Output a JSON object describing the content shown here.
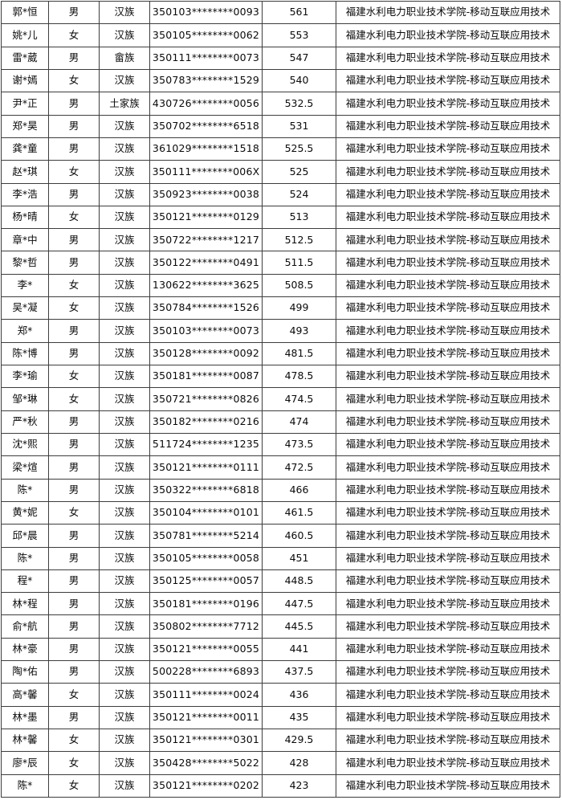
{
  "table": {
    "description_rows_format": [
      "name",
      "gender",
      "ethnicity",
      "id_number",
      "score",
      "school_major"
    ],
    "rows": [
      [
        "郭*恒",
        "男",
        "汉族",
        "350103********0093",
        "561",
        "福建水利电力职业技术学院-移动互联应用技术"
      ],
      [
        "姚*儿",
        "女",
        "汉族",
        "350105********0062",
        "553",
        "福建水利电力职业技术学院-移动互联应用技术"
      ],
      [
        "雷*葳",
        "男",
        "畲族",
        "350111********0073",
        "547",
        "福建水利电力职业技术学院-移动互联应用技术"
      ],
      [
        "谢*嫣",
        "女",
        "汉族",
        "350783********1529",
        "540",
        "福建水利电力职业技术学院-移动互联应用技术"
      ],
      [
        "尹*正",
        "男",
        "土家族",
        "430726********0056",
        "532.5",
        "福建水利电力职业技术学院-移动互联应用技术"
      ],
      [
        "郑*昊",
        "男",
        "汉族",
        "350702********6518",
        "531",
        "福建水利电力职业技术学院-移动互联应用技术"
      ],
      [
        "龚*童",
        "男",
        "汉族",
        "361029********1518",
        "525.5",
        "福建水利电力职业技术学院-移动互联应用技术"
      ],
      [
        "赵*琪",
        "女",
        "汉族",
        "350111********006X",
        "525",
        "福建水利电力职业技术学院-移动互联应用技术"
      ],
      [
        "李*浩",
        "男",
        "汉族",
        "350923********0038",
        "524",
        "福建水利电力职业技术学院-移动互联应用技术"
      ],
      [
        "杨*晴",
        "女",
        "汉族",
        "350121********0129",
        "513",
        "福建水利电力职业技术学院-移动互联应用技术"
      ],
      [
        "章*中",
        "男",
        "汉族",
        "350722********1217",
        "512.5",
        "福建水利电力职业技术学院-移动互联应用技术"
      ],
      [
        "黎*哲",
        "男",
        "汉族",
        "350122********0491",
        "511.5",
        "福建水利电力职业技术学院-移动互联应用技术"
      ],
      [
        "李*",
        "女",
        "汉族",
        "130622********3625",
        "508.5",
        "福建水利电力职业技术学院-移动互联应用技术"
      ],
      [
        "吴*凝",
        "女",
        "汉族",
        "350784********1526",
        "499",
        "福建水利电力职业技术学院-移动互联应用技术"
      ],
      [
        "郑*",
        "男",
        "汉族",
        "350103********0073",
        "493",
        "福建水利电力职业技术学院-移动互联应用技术"
      ],
      [
        "陈*博",
        "男",
        "汉族",
        "350128********0092",
        "481.5",
        "福建水利电力职业技术学院-移动互联应用技术"
      ],
      [
        "李*瑜",
        "女",
        "汉族",
        "350181********0087",
        "478.5",
        "福建水利电力职业技术学院-移动互联应用技术"
      ],
      [
        "邹*琳",
        "女",
        "汉族",
        "350721********0826",
        "474.5",
        "福建水利电力职业技术学院-移动互联应用技术"
      ],
      [
        "严*秋",
        "男",
        "汉族",
        "350182********0216",
        "474",
        "福建水利电力职业技术学院-移动互联应用技术"
      ],
      [
        "沈*熙",
        "男",
        "汉族",
        "511724********1235",
        "473.5",
        "福建水利电力职业技术学院-移动互联应用技术"
      ],
      [
        "梁*煊",
        "男",
        "汉族",
        "350121********0111",
        "472.5",
        "福建水利电力职业技术学院-移动互联应用技术"
      ],
      [
        "陈*",
        "男",
        "汉族",
        "350322********6818",
        "466",
        "福建水利电力职业技术学院-移动互联应用技术"
      ],
      [
        "黄*妮",
        "女",
        "汉族",
        "350104********0101",
        "461.5",
        "福建水利电力职业技术学院-移动互联应用技术"
      ],
      [
        "邱*晨",
        "男",
        "汉族",
        "350781********5214",
        "460.5",
        "福建水利电力职业技术学院-移动互联应用技术"
      ],
      [
        "陈*",
        "男",
        "汉族",
        "350105********0058",
        "451",
        "福建水利电力职业技术学院-移动互联应用技术"
      ],
      [
        "程*",
        "男",
        "汉族",
        "350125********0057",
        "448.5",
        "福建水利电力职业技术学院-移动互联应用技术"
      ],
      [
        "林*程",
        "男",
        "汉族",
        "350181********0196",
        "447.5",
        "福建水利电力职业技术学院-移动互联应用技术"
      ],
      [
        "俞*航",
        "男",
        "汉族",
        "350802********7712",
        "445.5",
        "福建水利电力职业技术学院-移动互联应用技术"
      ],
      [
        "林*豪",
        "男",
        "汉族",
        "350121********0055",
        "441",
        "福建水利电力职业技术学院-移动互联应用技术"
      ],
      [
        "陶*佑",
        "男",
        "汉族",
        "500228********6893",
        "437.5",
        "福建水利电力职业技术学院-移动互联应用技术"
      ],
      [
        "高*馨",
        "女",
        "汉族",
        "350111********0024",
        "436",
        "福建水利电力职业技术学院-移动互联应用技术"
      ],
      [
        "林*墨",
        "男",
        "汉族",
        "350121********0011",
        "435",
        "福建水利电力职业技术学院-移动互联应用技术"
      ],
      [
        "林*馨",
        "女",
        "汉族",
        "350121********0301",
        "429.5",
        "福建水利电力职业技术学院-移动互联应用技术"
      ],
      [
        "廖*辰",
        "女",
        "汉族",
        "350428********5022",
        "428",
        "福建水利电力职业技术学院-移动互联应用技术"
      ],
      [
        "陈*",
        "女",
        "汉族",
        "350121********0202",
        "423",
        "福建水利电力职业技术学院-移动互联应用技术"
      ]
    ],
    "colors": {
      "border": "#3d3d3d",
      "text": "#0a0a0a",
      "background": "#ffffff"
    }
  }
}
